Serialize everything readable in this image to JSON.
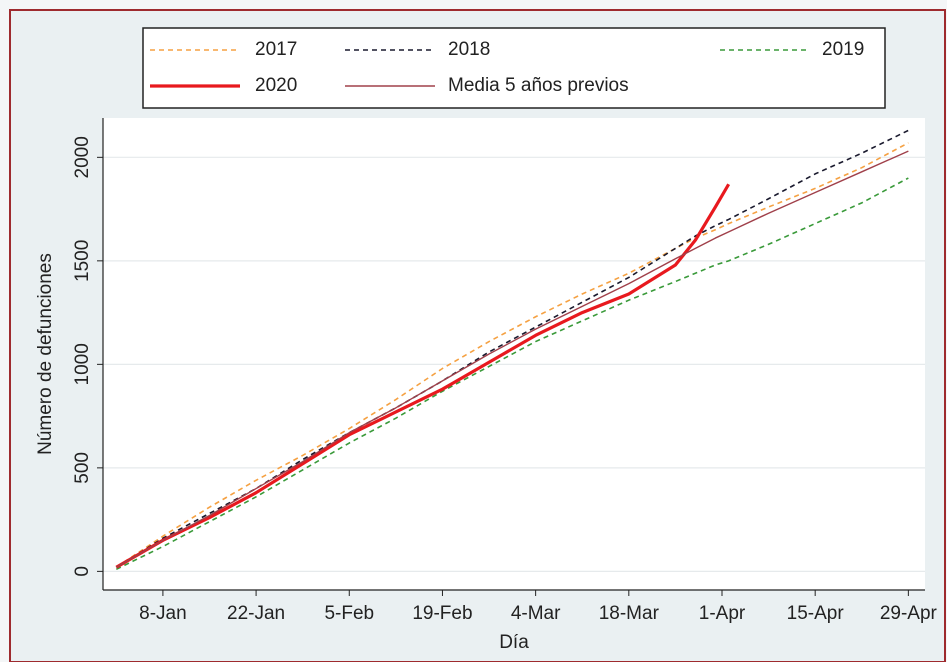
{
  "chart_data": {
    "type": "line",
    "x_label": "Día",
    "y_label": "Número de defunciones",
    "x": [
      1,
      8,
      15,
      22,
      29,
      36,
      43,
      50,
      57,
      64,
      71,
      78,
      85,
      88,
      91,
      93,
      99,
      106,
      113,
      120
    ],
    "xlim": [
      -1,
      122.5
    ],
    "xticks": [
      {
        "value": 8,
        "label": "8-Jan"
      },
      {
        "value": 22,
        "label": "22-Jan"
      },
      {
        "value": 36,
        "label": "5-Feb"
      },
      {
        "value": 50,
        "label": "19-Feb"
      },
      {
        "value": 64,
        "label": "4-Mar"
      },
      {
        "value": 78,
        "label": "18-Mar"
      },
      {
        "value": 92,
        "label": "1-Apr"
      },
      {
        "value": 106,
        "label": "15-Apr"
      },
      {
        "value": 120,
        "label": "29-Apr"
      }
    ],
    "ylim": [
      -90,
      2190
    ],
    "yticks": [
      0,
      500,
      1000,
      1500,
      2000
    ],
    "grid": true,
    "series": [
      {
        "name": "2017",
        "color": "#f5a142",
        "linestyle": "dashed",
        "values": [
          20,
          170,
          310,
          440,
          560,
          690,
          830,
          980,
          1110,
          1230,
          1340,
          1440,
          1560,
          1610,
          1650,
          1680,
          1760,
          1850,
          1950,
          2070
        ]
      },
      {
        "name": "2018",
        "color": "#1a1a2e",
        "linestyle": "dashed",
        "values": [
          20,
          160,
          280,
          400,
          540,
          670,
          790,
          920,
          1060,
          1180,
          1300,
          1420,
          1560,
          1620,
          1670,
          1700,
          1800,
          1920,
          2020,
          2130
        ]
      },
      {
        "name": "2019",
        "color": "#3a9a3a",
        "linestyle": "dashed",
        "values": [
          10,
          120,
          240,
          360,
          490,
          620,
          740,
          870,
          990,
          1110,
          1210,
          1310,
          1400,
          1440,
          1480,
          1500,
          1580,
          1680,
          1780,
          1900
        ]
      },
      {
        "name": "2020",
        "color": "#e8191e",
        "linestyle": "bold",
        "values": [
          20,
          150,
          260,
          380,
          520,
          660,
          770,
          880,
          1010,
          1140,
          1250,
          1340,
          1480,
          1600,
          1760,
          1870,
          null,
          null,
          null,
          null
        ]
      },
      {
        "name": "Media 5 años previos",
        "color": "#a0404a",
        "linestyle": "solid",
        "values": [
          20,
          150,
          270,
          400,
          530,
          670,
          790,
          920,
          1050,
          1170,
          1280,
          1390,
          1510,
          1560,
          1610,
          1640,
          1730,
          1830,
          1930,
          2030
        ]
      }
    ]
  }
}
